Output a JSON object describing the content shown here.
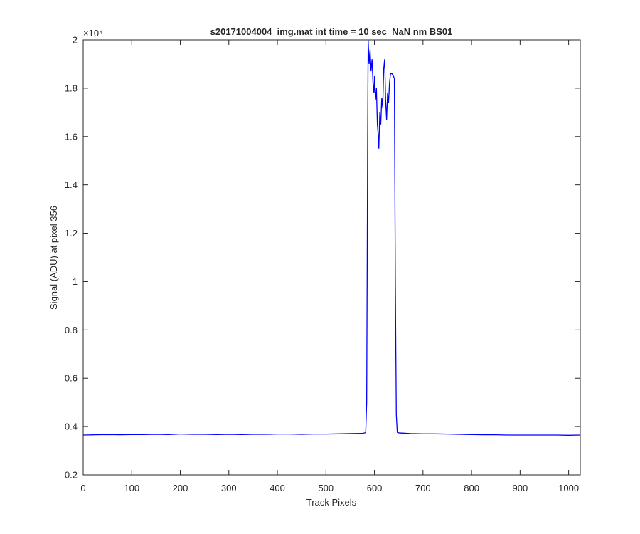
{
  "chart_data": {
    "type": "line",
    "title": "s20171004004_img.mat int time = 10 sec  NaN nm BS01",
    "x_label": "Track Pixels",
    "y_label": "Signal (ADU) at pixel 356",
    "y_exponent_label": "×10⁴",
    "color": "#0000ff",
    "x": [
      0,
      25,
      50,
      75,
      100,
      125,
      150,
      175,
      200,
      225,
      250,
      275,
      300,
      325,
      350,
      375,
      400,
      425,
      450,
      475,
      500,
      525,
      550,
      575,
      582,
      584,
      586,
      587,
      589,
      591,
      593,
      595,
      597,
      599,
      600,
      602,
      604,
      606,
      608,
      609,
      611,
      613,
      615,
      617,
      619,
      621,
      623,
      625,
      627,
      629,
      631,
      633,
      636,
      639,
      641,
      643,
      645,
      647,
      650,
      675,
      700,
      725,
      750,
      775,
      800,
      825,
      850,
      875,
      900,
      925,
      950,
      975,
      1000,
      1024
    ],
    "values": [
      0.365,
      0.366,
      0.367,
      0.366,
      0.367,
      0.367,
      0.368,
      0.367,
      0.369,
      0.368,
      0.368,
      0.367,
      0.368,
      0.367,
      0.368,
      0.368,
      0.369,
      0.369,
      0.368,
      0.369,
      0.369,
      0.37,
      0.371,
      0.372,
      0.375,
      0.5,
      1.6,
      2.0,
      1.9,
      1.96,
      1.87,
      1.92,
      1.82,
      1.78,
      1.85,
      1.75,
      1.8,
      1.65,
      1.6,
      1.55,
      1.7,
      1.65,
      1.76,
      1.72,
      1.88,
      1.92,
      1.75,
      1.67,
      1.78,
      1.74,
      1.82,
      1.86,
      1.86,
      1.85,
      1.84,
      1.0,
      0.45,
      0.376,
      0.374,
      0.371,
      0.37,
      0.37,
      0.369,
      0.368,
      0.367,
      0.366,
      0.366,
      0.365,
      0.365,
      0.365,
      0.365,
      0.365,
      0.364,
      0.365
    ],
    "xlim": [
      0,
      1024
    ],
    "xticks": [
      0,
      100,
      200,
      300,
      400,
      500,
      600,
      700,
      800,
      900,
      1000
    ],
    "ylim": [
      0.2,
      2
    ],
    "yticks": [
      0.2,
      0.4,
      0.6,
      0.8,
      1,
      1.2,
      1.4,
      1.6,
      1.8,
      2
    ],
    "grid": false
  }
}
